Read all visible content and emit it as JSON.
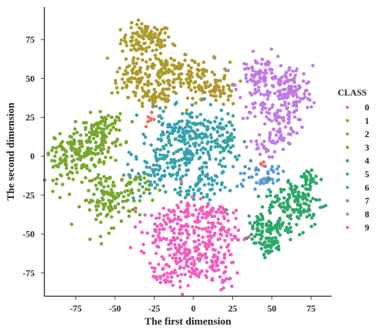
{
  "chart_data": {
    "type": "scatter",
    "title": "",
    "xlabel": "The first dimension",
    "ylabel": "The second dimension",
    "xlim": [
      -95,
      88
    ],
    "ylim": [
      -90,
      96
    ],
    "xticks": [
      -75,
      -50,
      -25,
      0,
      25,
      50,
      75
    ],
    "yticks": [
      75,
      50,
      25,
      0,
      -25,
      -50,
      -75
    ],
    "grid": false,
    "legend": {
      "title": "CLASS",
      "placement": "right"
    },
    "classes": [
      {
        "name": "0",
        "color": "#f16d63"
      },
      {
        "name": "1",
        "color": "#c08a2a"
      },
      {
        "name": "2",
        "color": "#ac9a2c"
      },
      {
        "name": "3",
        "color": "#78a72c"
      },
      {
        "name": "4",
        "color": "#2da769"
      },
      {
        "name": "5",
        "color": "#33a69d"
      },
      {
        "name": "6",
        "color": "#37a2ad"
      },
      {
        "name": "7",
        "color": "#5d99d9"
      },
      {
        "name": "8",
        "color": "#c07ae6"
      },
      {
        "name": "9",
        "color": "#f05fbe"
      }
    ],
    "clusters": [
      {
        "class": "2",
        "cx": -30,
        "cy": 75,
        "sx": 8,
        "sy": 5,
        "n": 110
      },
      {
        "class": "2",
        "cx": -20,
        "cy": 55,
        "sx": 10,
        "sy": 7,
        "n": 110
      },
      {
        "class": "2",
        "cx": 5,
        "cy": 50,
        "sx": 9,
        "sy": 6,
        "n": 80
      },
      {
        "class": "2",
        "cx": -40,
        "cy": 50,
        "sx": 6,
        "sy": 5,
        "n": 50
      },
      {
        "class": "2",
        "cx": -25,
        "cy": 38,
        "sx": 8,
        "sy": 4,
        "n": 60
      },
      {
        "class": "2",
        "cx": 18,
        "cy": 40,
        "sx": 5,
        "sy": 4,
        "n": 30
      },
      {
        "class": "1",
        "cx": 15,
        "cy": 44,
        "sx": 4,
        "sy": 3,
        "n": 8
      },
      {
        "class": "0",
        "cx": -27,
        "cy": 23,
        "sx": 2,
        "sy": 4,
        "n": 8
      },
      {
        "class": "0",
        "cx": 45,
        "cy": -5,
        "sx": 2,
        "sy": 2,
        "n": 4
      },
      {
        "class": "8",
        "cx": 45,
        "cy": 45,
        "sx": 8,
        "sy": 10,
        "n": 110
      },
      {
        "class": "8",
        "cx": 62,
        "cy": 40,
        "sx": 7,
        "sy": 9,
        "n": 120
      },
      {
        "class": "8",
        "cx": 55,
        "cy": 18,
        "sx": 6,
        "sy": 7,
        "n": 60
      },
      {
        "class": "8",
        "cx": 37,
        "cy": 52,
        "sx": 4,
        "sy": 4,
        "n": 25
      },
      {
        "class": "8",
        "cx": 43,
        "cy": 5,
        "sx": 5,
        "sy": 3,
        "n": 15
      },
      {
        "class": "3",
        "cx": -70,
        "cy": 3,
        "sx": 9,
        "sy": 6,
        "n": 110
      },
      {
        "class": "3",
        "cx": -60,
        "cy": 15,
        "sx": 8,
        "sy": 6,
        "n": 80
      },
      {
        "class": "3",
        "cx": -55,
        "cy": -28,
        "sx": 8,
        "sy": 9,
        "n": 110
      },
      {
        "class": "3",
        "cx": -82,
        "cy": -5,
        "sx": 6,
        "sy": 6,
        "n": 50
      },
      {
        "class": "3",
        "cx": -38,
        "cy": -20,
        "sx": 6,
        "sy": 6,
        "n": 45
      },
      {
        "class": "3",
        "cx": -55,
        "cy": 22,
        "sx": 4,
        "sy": 3,
        "n": 20
      },
      {
        "class": "6",
        "cx": -5,
        "cy": 2,
        "sx": 14,
        "sy": 12,
        "n": 200
      },
      {
        "class": "6",
        "cx": 0,
        "cy": 20,
        "sx": 12,
        "sy": 5,
        "n": 80
      },
      {
        "class": "6",
        "cx": -28,
        "cy": -12,
        "sx": 7,
        "sy": 8,
        "n": 50
      },
      {
        "class": "6",
        "cx": 5,
        "cy": -20,
        "sx": 7,
        "sy": 5,
        "n": 45
      },
      {
        "class": "5",
        "cx": 20,
        "cy": 10,
        "sx": 6,
        "sy": 7,
        "n": 40
      },
      {
        "class": "7",
        "cx": 40,
        "cy": -14,
        "sx": 6,
        "sy": 4,
        "n": 35
      },
      {
        "class": "7",
        "cx": 52,
        "cy": -10,
        "sx": 3,
        "sy": 3,
        "n": 12
      },
      {
        "class": "4",
        "cx": 65,
        "cy": -30,
        "sx": 9,
        "sy": 8,
        "n": 130
      },
      {
        "class": "4",
        "cx": 48,
        "cy": -45,
        "sx": 8,
        "sy": 5,
        "n": 80
      },
      {
        "class": "4",
        "cx": 48,
        "cy": -57,
        "sx": 4,
        "sy": 3,
        "n": 40
      },
      {
        "class": "4",
        "cx": 73,
        "cy": -15,
        "sx": 4,
        "sy": 4,
        "n": 30
      },
      {
        "class": "9",
        "cx": -15,
        "cy": -48,
        "sx": 9,
        "sy": 8,
        "n": 110
      },
      {
        "class": "9",
        "cx": 10,
        "cy": -48,
        "sx": 9,
        "sy": 9,
        "n": 110
      },
      {
        "class": "9",
        "cx": -5,
        "cy": -68,
        "sx": 10,
        "sy": 7,
        "n": 100
      },
      {
        "class": "9",
        "cx": 15,
        "cy": -72,
        "sx": 6,
        "sy": 7,
        "n": 45
      },
      {
        "class": "9",
        "cx": -18,
        "cy": -78,
        "sx": 4,
        "sy": 3,
        "n": 25
      },
      {
        "class": "9",
        "cx": 8,
        "cy": -35,
        "sx": 8,
        "sy": 3,
        "n": 40
      }
    ]
  }
}
